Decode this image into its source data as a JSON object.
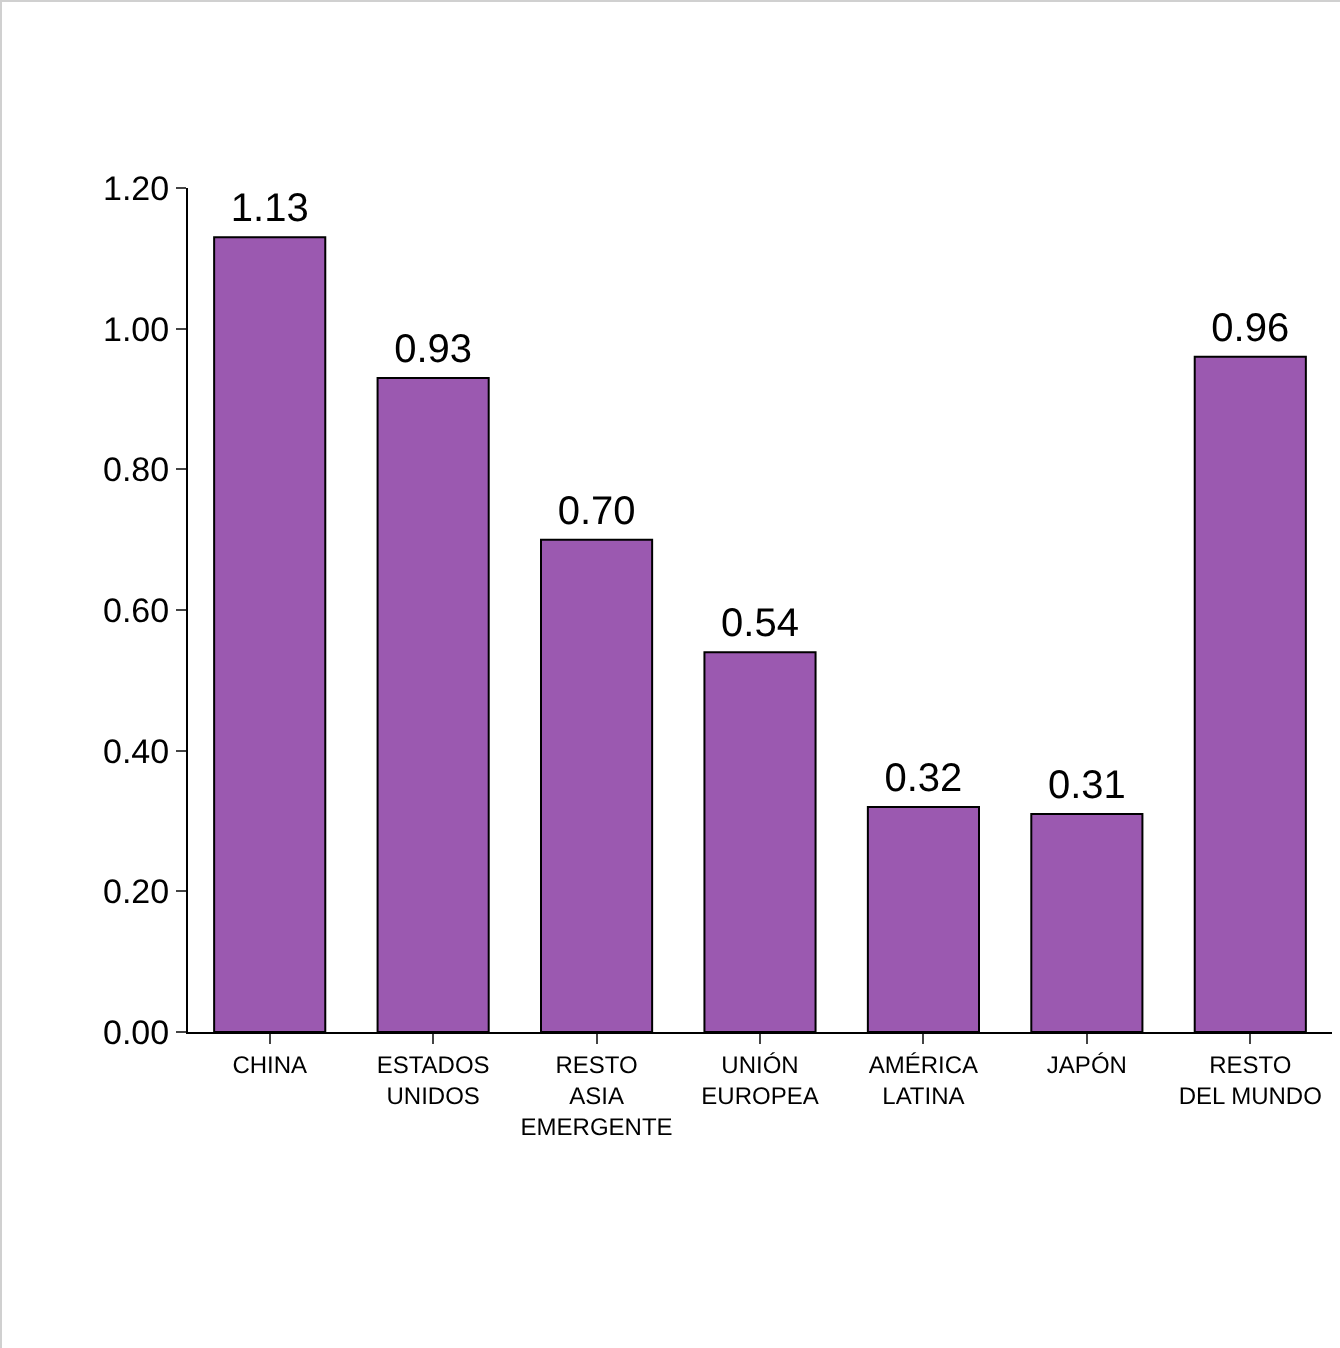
{
  "chart_data": {
    "type": "bar",
    "categories": [
      "CHINA",
      "ESTADOS\nUNIDOS",
      "RESTO\nASIA\nEMERGENTE",
      "UNIÓN\nEUROPEA",
      "AMÉRICA\nLATINA",
      "JAPÓN",
      "RESTO\nDEL MUNDO"
    ],
    "values": [
      1.13,
      0.93,
      0.7,
      0.54,
      0.32,
      0.31,
      0.96
    ],
    "value_labels": [
      "1.13",
      "0.93",
      "0.70",
      "0.54",
      "0.32",
      "0.31",
      "0.96"
    ],
    "color": "#9b59b0",
    "ylim": [
      0,
      1.2
    ],
    "yticks": [
      {
        "value": 0,
        "label": "0.00"
      },
      {
        "value": 0.2,
        "label": "0.20"
      },
      {
        "value": 0.4,
        "label": "0.40"
      },
      {
        "value": 0.6,
        "label": "0.60"
      },
      {
        "value": 0.8,
        "label": "0.80"
      },
      {
        "value": 1,
        "label": "1.00"
      },
      {
        "value": 1.2,
        "label": "1.20"
      }
    ],
    "grid": false,
    "legend": false
  }
}
